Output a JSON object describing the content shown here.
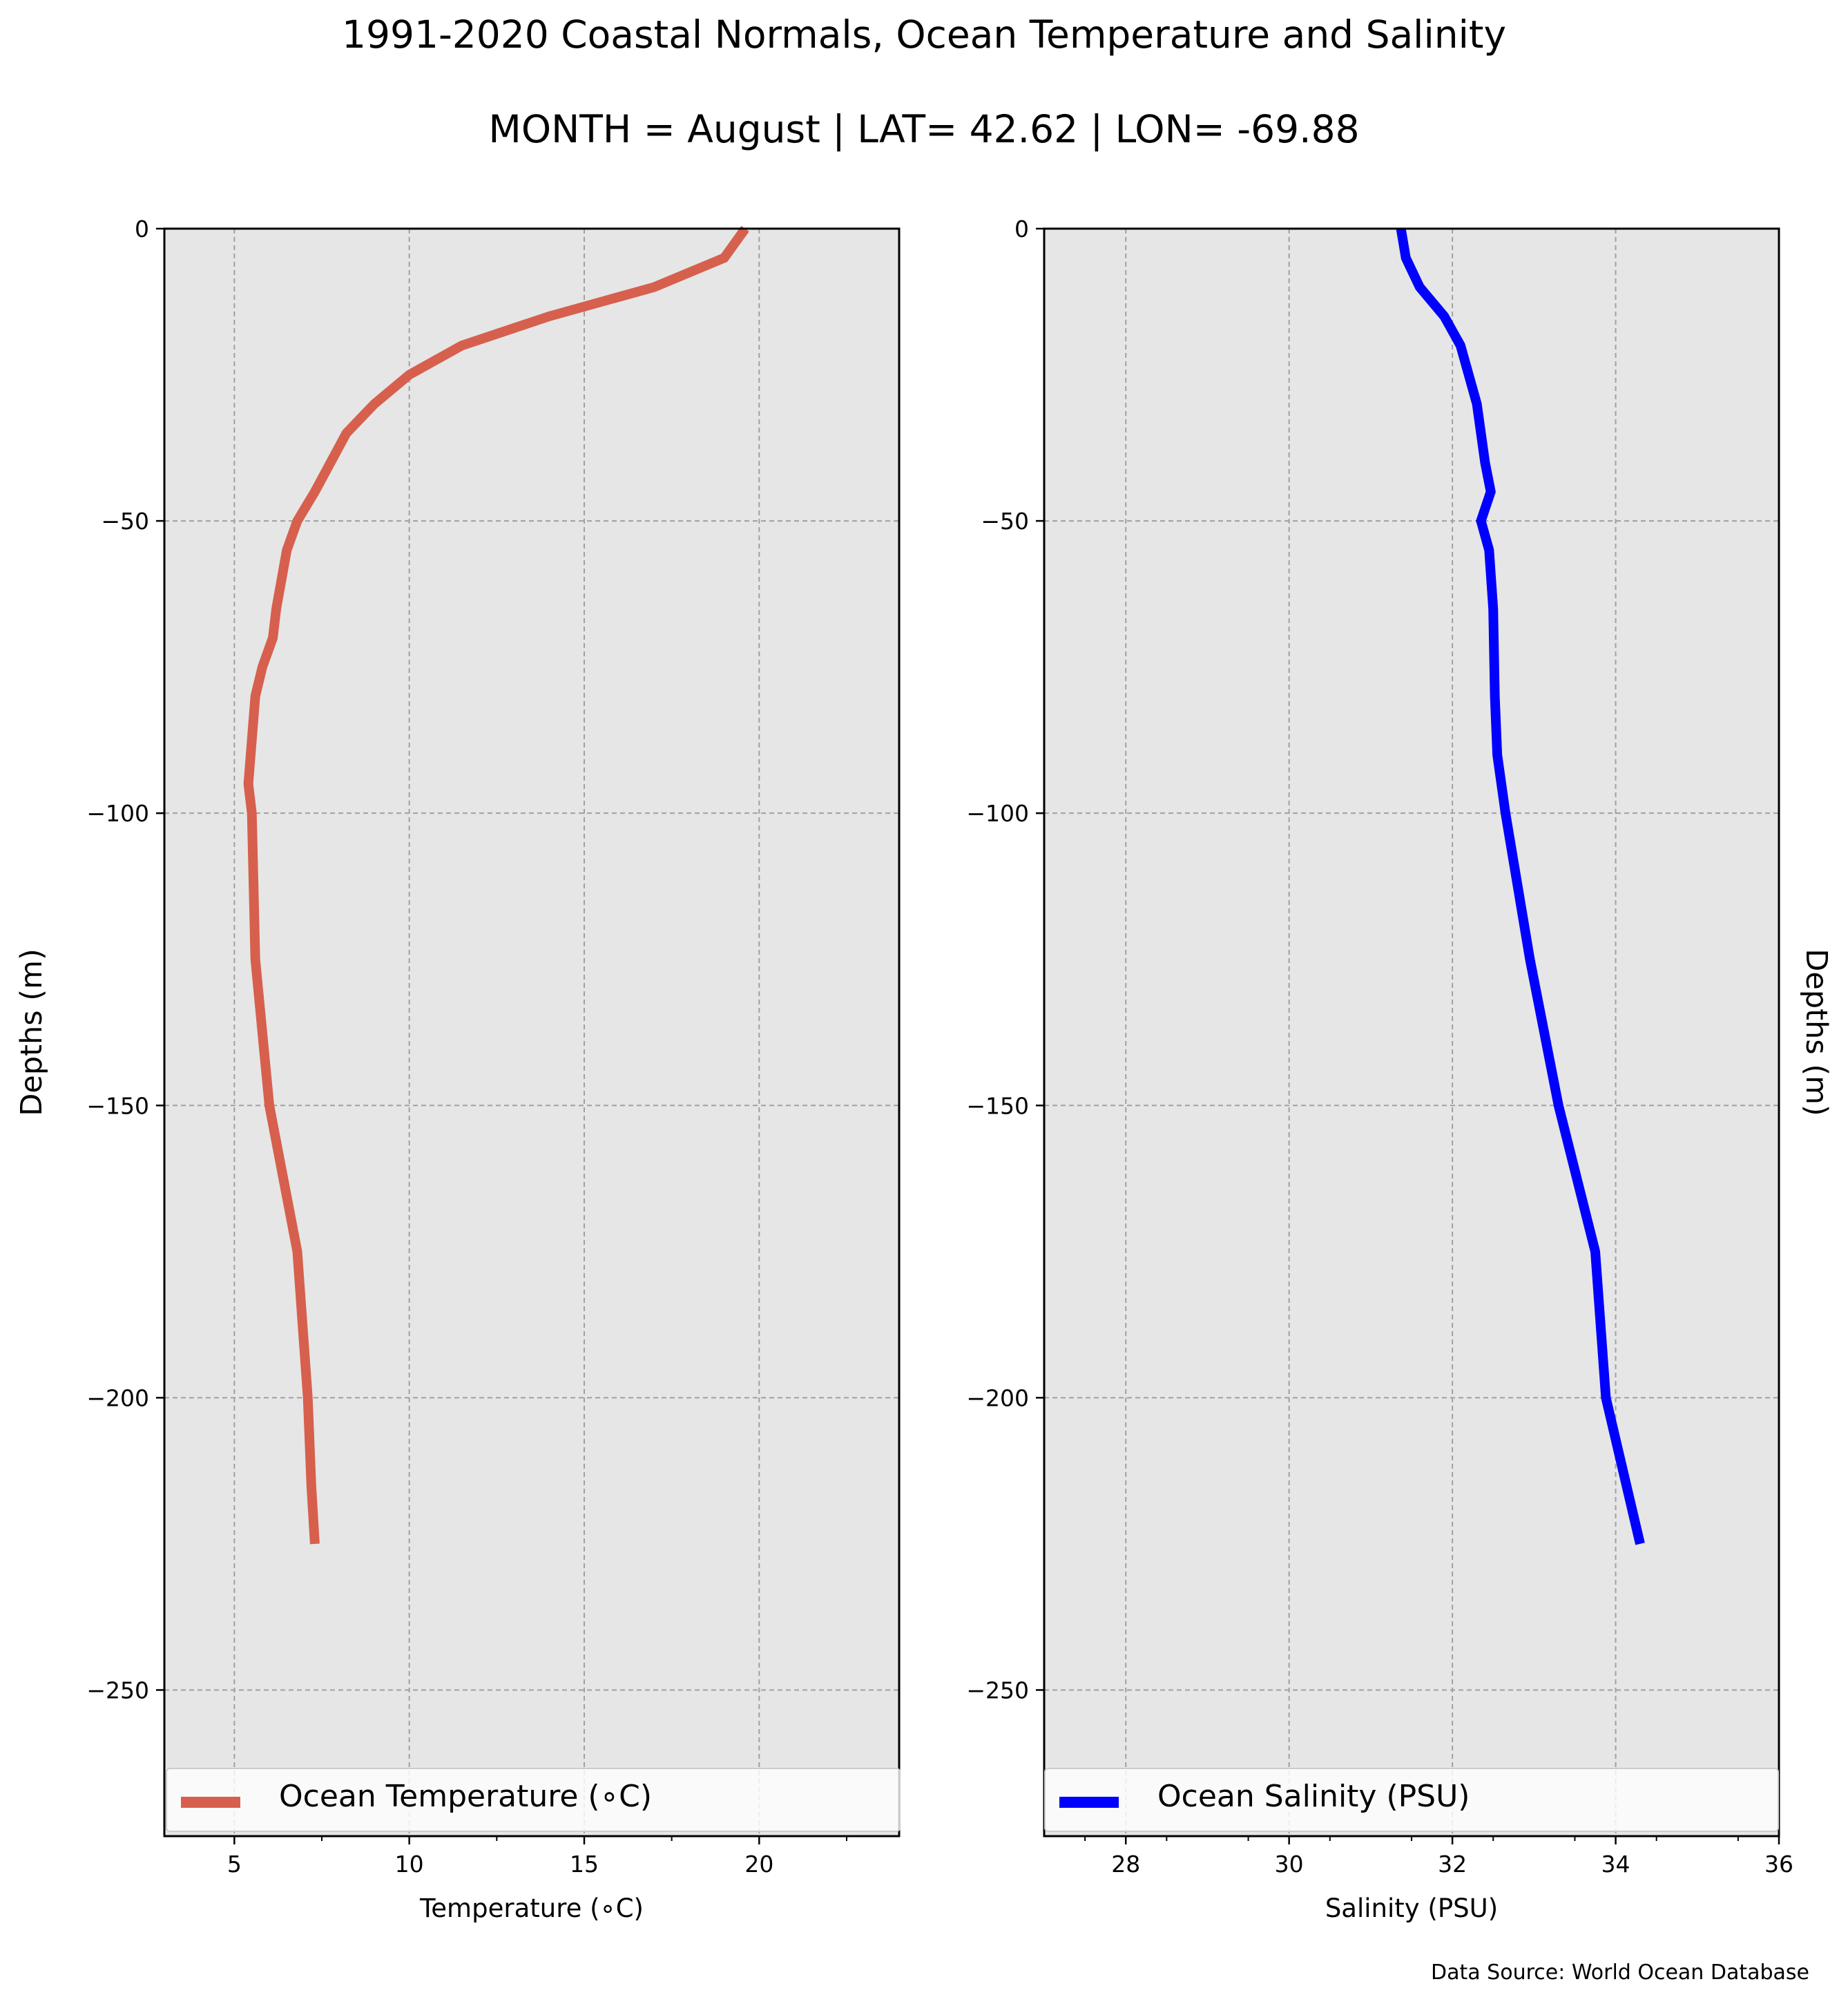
{
  "figure": {
    "title": "1991-2020 Coastal Normals, Ocean Temperature and Salinity",
    "subtitle": "MONTH = August | LAT= 42.62 | LON= -69.88",
    "source": "Data Source: World Ocean Database"
  },
  "chart_data": [
    {
      "type": "line",
      "xlabel": "Temperature ($^\\circ$C)",
      "xlabel_display": "Temperature (∘C)",
      "ylabel": "Depths (m)",
      "xlim": [
        3,
        24
      ],
      "ylim": [
        -275,
        0
      ],
      "xticks": [
        5,
        10,
        15,
        20
      ],
      "yticks": [
        0,
        -50,
        -100,
        -150,
        -200,
        -250
      ],
      "ytick_labels": [
        "0",
        "−50",
        "−100",
        "−150",
        "−200",
        "−250"
      ],
      "grid": true,
      "legend_location": "lower center",
      "series": [
        {
          "name": "Ocean Temperature (∘C)",
          "color": "#d6604d",
          "x": [
            19.6,
            19.0,
            17.0,
            14.0,
            11.5,
            10.0,
            9.0,
            8.2,
            7.3,
            6.8,
            6.5,
            6.2,
            6.1,
            5.8,
            5.6,
            5.4,
            5.5,
            5.6,
            6.0,
            6.8,
            7.1,
            7.2,
            7.3
          ],
          "y": [
            0,
            -5,
            -10,
            -15,
            -20,
            -25,
            -30,
            -35,
            -45,
            -50,
            -55,
            -65,
            -70,
            -75,
            -80,
            -95,
            -100,
            -125,
            -150,
            -175,
            -200,
            -215,
            -225
          ]
        }
      ]
    },
    {
      "type": "line",
      "xlabel": "Salinity (PSU)",
      "ylabel": "Depths (m)",
      "xlim": [
        27,
        36
      ],
      "ylim": [
        -275,
        0
      ],
      "xticks": [
        28,
        30,
        32,
        34,
        36
      ],
      "yticks": [
        0,
        -50,
        -100,
        -150,
        -200,
        -250
      ],
      "ytick_labels": [
        "0",
        "−50",
        "−100",
        "−150",
        "−200",
        "−250"
      ],
      "grid": true,
      "legend_location": "lower center",
      "series": [
        {
          "name": "Ocean Salinity (PSU)",
          "color": "#0000ff",
          "x": [
            31.37,
            31.43,
            31.6,
            31.9,
            32.1,
            32.3,
            32.4,
            32.47,
            32.35,
            32.45,
            32.5,
            32.52,
            32.55,
            32.65,
            32.95,
            33.3,
            33.75,
            33.88,
            34.3
          ],
          "y": [
            0,
            -5,
            -10,
            -15,
            -20,
            -30,
            -40,
            -45,
            -50,
            -55,
            -65,
            -80,
            -90,
            -100,
            -125,
            -150,
            -175,
            -200,
            -225
          ]
        }
      ]
    }
  ]
}
